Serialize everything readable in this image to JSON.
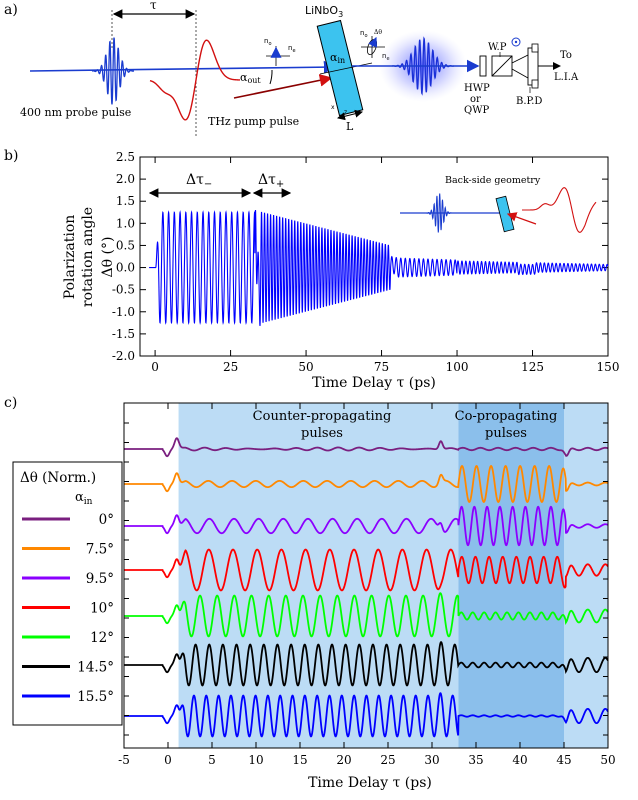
{
  "panels": {
    "a": {
      "label": "a)",
      "tau": "τ",
      "crystal": "LiNbO",
      "crystal_sub": "3",
      "probe_label": "400 nm probe pulse",
      "pump_label": "THz pump pulse",
      "alpha_out": "α",
      "alpha_out_sub": "out",
      "alpha_in": "α",
      "alpha_in_sub": "in",
      "length": "L",
      "n_o": "n",
      "n_o_sub": "o",
      "n_e": "n",
      "n_e_sub": "e",
      "delta_theta": "Δθ",
      "x_axis": "x",
      "z_axis": "z",
      "wp": "W.P",
      "hwp": "HWP",
      "or": "or",
      "qwp": "QWP",
      "bpd": "B.P.D",
      "to": "To",
      "lia": "L.I.A"
    },
    "b": {
      "label": "b)",
      "ylabel_line1": "Polarization",
      "ylabel_line2": "rotation angle",
      "ylabel_line3": "Δθ (°)",
      "dtau_minus": "Δτ",
      "dtau_minus_sub": "−",
      "dtau_plus": "Δτ",
      "dtau_plus_sub": "+",
      "inset_label": "Back-side geometry"
    },
    "c": {
      "label": "c)",
      "region_counter": [
        "Counter-propagating",
        "pulses"
      ],
      "region_co": [
        "Co-propagating",
        "pulses"
      ],
      "legend_title": "Δθ (Norm.)",
      "legend_sub": "α",
      "legend_sub_sub": "in"
    }
  },
  "chart_data": [
    {
      "panel": "b",
      "type": "line",
      "xlabel": "Time Delay τ (ps)",
      "ylabel": "Polarization rotation angle Δθ (°)",
      "xlim": [
        -5,
        150
      ],
      "ylim": [
        -2.0,
        2.5
      ],
      "xticks": [
        "0",
        "25",
        "50",
        "75",
        "100",
        "125",
        "150"
      ],
      "yticks": [
        "2.5",
        "2.0",
        "1.5",
        "1.0",
        "0.5",
        "0.0",
        "-0.5",
        "-1.0",
        "-1.5",
        "-2.0"
      ],
      "grid": false,
      "series": [
        {
          "color": "#0000ff",
          "description_segments": [
            {
              "x_range": [
                0,
                33
              ],
              "amplitude": 1.25,
              "period": 1.9
            },
            {
              "x_range": [
                33,
                78
              ],
              "amplitude_start": 1.3,
              "amplitude_end": 0.5,
              "period": 1.0,
              "spike_at": 34,
              "spike_min": -1.65,
              "spike_max": 1.45
            },
            {
              "x_range": [
                78,
                100
              ],
              "amplitude": 0.2,
              "period": 1.5,
              "step_at": 79
            },
            {
              "x_range": [
                100,
                150
              ],
              "amplitude_start": 0.15,
              "amplitude_end": 0.07,
              "period": 1.3
            }
          ]
        }
      ]
    },
    {
      "panel": "c",
      "type": "line",
      "xlabel": "Time Delay τ (ps)",
      "xlim": [
        -5,
        50
      ],
      "xticks": [
        "-5",
        "0",
        "5",
        "10",
        "15",
        "20",
        "25",
        "30",
        "35",
        "40",
        "45",
        "50"
      ],
      "regions": [
        {
          "name": "Counter-propagating pulses",
          "x_range": [
            1.2,
            33
          ],
          "color": "#bcdcf5"
        },
        {
          "name": "Co-propagating pulses",
          "x_range": [
            33,
            45
          ],
          "color": "#8bbfeb"
        },
        {
          "x_range": [
            45,
            50
          ],
          "color": "#bcdcf5"
        }
      ],
      "series": [
        {
          "name": "0°",
          "color": "#7a1f7f",
          "counter_amplitude": 0.04,
          "counter_period": 2.5,
          "co_amplitude": 0.05,
          "co_period": 2.0,
          "spike_at": 1
        },
        {
          "name": "7.5°",
          "color": "#ff8800",
          "counter_amplitude": 0.13,
          "counter_period": 2.7,
          "co_amplitude": 0.75,
          "co_period": 1.65
        },
        {
          "name": "9.5°",
          "color": "#8b00ff",
          "counter_amplitude": 0.3,
          "counter_period": 2.8,
          "co_amplitude": 0.8,
          "co_period": 1.45
        },
        {
          "name": "10°",
          "color": "#ff0000",
          "counter_amplitude": 0.85,
          "counter_period": 2.75,
          "co_amplitude": 0.55,
          "co_period": 1.55
        },
        {
          "name": "12°",
          "color": "#00ff00",
          "counter_amplitude": 0.85,
          "counter_period": 1.95,
          "co_amplitude": 0.15,
          "co_period": 1.3
        },
        {
          "name": "14.5°",
          "color": "#000000",
          "counter_amplitude": 0.85,
          "counter_period": 1.55,
          "co_amplitude": 0.1,
          "co_period": 1.3
        },
        {
          "name": "15.5°",
          "color": "#0000ff",
          "counter_amplitude": 0.85,
          "counter_period": 1.4,
          "co_amplitude": 0.03,
          "co_period": 1.3
        }
      ]
    }
  ]
}
